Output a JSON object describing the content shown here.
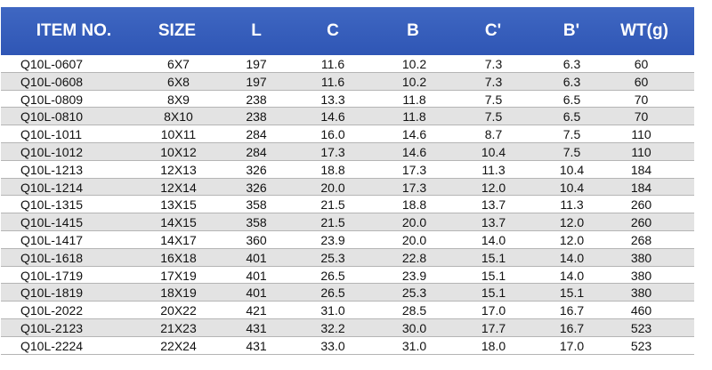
{
  "table": {
    "headers": [
      "ITEM NO.",
      "SIZE",
      "L",
      "C",
      "B",
      "C'",
      "B'",
      "WT(g)"
    ],
    "rows": [
      [
        "Q10L-0607",
        "6X7",
        "197",
        "11.6",
        "10.2",
        "7.3",
        "6.3",
        "60"
      ],
      [
        "Q10L-0608",
        "6X8",
        "197",
        "11.6",
        "10.2",
        "7.3",
        "6.3",
        "60"
      ],
      [
        "Q10L-0809",
        "8X9",
        "238",
        "13.3",
        "11.8",
        "7.5",
        "6.5",
        "70"
      ],
      [
        "Q10L-0810",
        "8X10",
        "238",
        "14.6",
        "11.8",
        "7.5",
        "6.5",
        "70"
      ],
      [
        "Q10L-1011",
        "10X11",
        "284",
        "16.0",
        "14.6",
        "8.7",
        "7.5",
        "110"
      ],
      [
        "Q10L-1012",
        "10X12",
        "284",
        "17.3",
        "14.6",
        "10.4",
        "7.5",
        "110"
      ],
      [
        "Q10L-1213",
        "12X13",
        "326",
        "18.8",
        "17.3",
        "11.3",
        "10.4",
        "184"
      ],
      [
        "Q10L-1214",
        "12X14",
        "326",
        "20.0",
        "17.3",
        "12.0",
        "10.4",
        "184"
      ],
      [
        "Q10L-1315",
        "13X15",
        "358",
        "21.5",
        "18.8",
        "13.7",
        "11.3",
        "260"
      ],
      [
        "Q10L-1415",
        "14X15",
        "358",
        "21.5",
        "20.0",
        "13.7",
        "12.0",
        "260"
      ],
      [
        "Q10L-1417",
        "14X17",
        "360",
        "23.9",
        "20.0",
        "14.0",
        "12.0",
        "268"
      ],
      [
        "Q10L-1618",
        "16X18",
        "401",
        "25.3",
        "22.8",
        "15.1",
        "14.0",
        "380"
      ],
      [
        "Q10L-1719",
        "17X19",
        "401",
        "26.5",
        "23.9",
        "15.1",
        "14.0",
        "380"
      ],
      [
        "Q10L-1819",
        "18X19",
        "401",
        "26.5",
        "25.3",
        "15.1",
        "15.1",
        "380"
      ],
      [
        "Q10L-2022",
        "20X22",
        "421",
        "31.0",
        "28.5",
        "17.0",
        "16.7",
        "460"
      ],
      [
        "Q10L-2123",
        "21X23",
        "431",
        "32.2",
        "30.0",
        "17.7",
        "16.7",
        "523"
      ],
      [
        "Q10L-2224",
        "22X24",
        "431",
        "33.0",
        "31.0",
        "18.0",
        "17.0",
        "523"
      ]
    ]
  },
  "colors": {
    "header_bg": "#3059b8",
    "header_text": "#ffffff",
    "row_alt_bg": "#e3e3e3",
    "row_bg": "#ffffff",
    "row_line": "#b5b5b5"
  }
}
